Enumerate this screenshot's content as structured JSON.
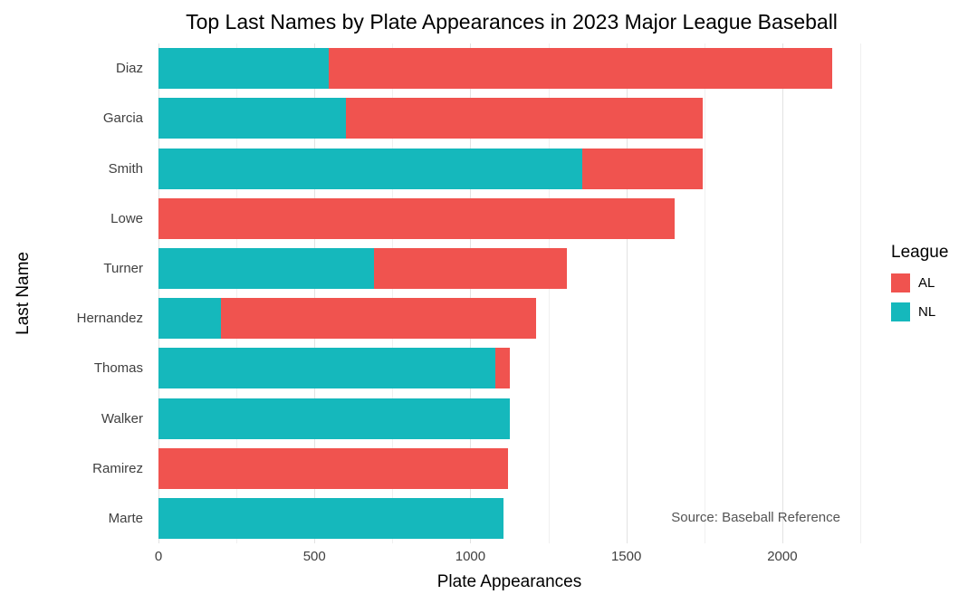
{
  "chart_data": {
    "type": "bar",
    "orientation": "horizontal",
    "stacked": true,
    "title": "Top Last Names by Plate Appearances in 2023 Major League Baseball",
    "xlabel": "Plate Appearances",
    "ylabel": "Last Name",
    "categories": [
      "Diaz",
      "Garcia",
      "Smith",
      "Lowe",
      "Turner",
      "Hernandez",
      "Thomas",
      "Walker",
      "Ramirez",
      "Marte"
    ],
    "series": [
      {
        "name": "NL",
        "color": "#15B8BC",
        "values": [
          545,
          600,
          1360,
          0,
          690,
          200,
          1080,
          1125,
          0,
          1105
        ]
      },
      {
        "name": "AL",
        "color": "#F0534F",
        "values": [
          1615,
          1145,
          385,
          1655,
          620,
          1010,
          45,
          0,
          1120,
          0
        ]
      }
    ],
    "totals": [
      2160,
      1745,
      1745,
      1655,
      1310,
      1210,
      1125,
      1125,
      1120,
      1105
    ],
    "xlim": [
      0,
      2250
    ],
    "xticks": [
      0,
      500,
      1000,
      1500,
      2000
    ],
    "grid": "major-and-minor-vertical",
    "legend": {
      "title": "League",
      "position": "right",
      "entries": [
        "AL",
        "NL"
      ]
    },
    "annotation": "Source: Baseball Reference"
  }
}
